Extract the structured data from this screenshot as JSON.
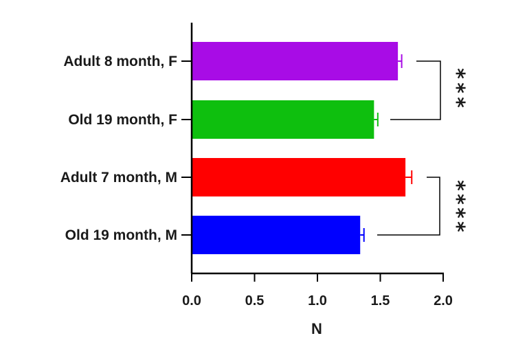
{
  "chart_data": {
    "type": "bar",
    "orientation": "horizontal",
    "title": "",
    "xlabel": "N",
    "ylabel": "",
    "xlim": [
      0,
      2.0
    ],
    "x_ticks": [
      "0.0",
      "0.5",
      "1.0",
      "1.5",
      "2.0"
    ],
    "grid": false,
    "categories": [
      "Adult 8 month, F",
      "Old 19 month, F",
      "Adult 7 month, M",
      "Old 19 month, M"
    ],
    "values": [
      1.64,
      1.45,
      1.7,
      1.34
    ],
    "errors": [
      0.03,
      0.03,
      0.05,
      0.03
    ],
    "colors": [
      "#a80ce6",
      "#0ebf0e",
      "#ff0000",
      "#0000ff"
    ],
    "significance": [
      {
        "between": [
          "Adult 8 month, F",
          "Old 19 month, F"
        ],
        "label": "***"
      },
      {
        "between": [
          "Adult 7 month, M",
          "Old 19 month, M"
        ],
        "label": "****"
      }
    ]
  }
}
